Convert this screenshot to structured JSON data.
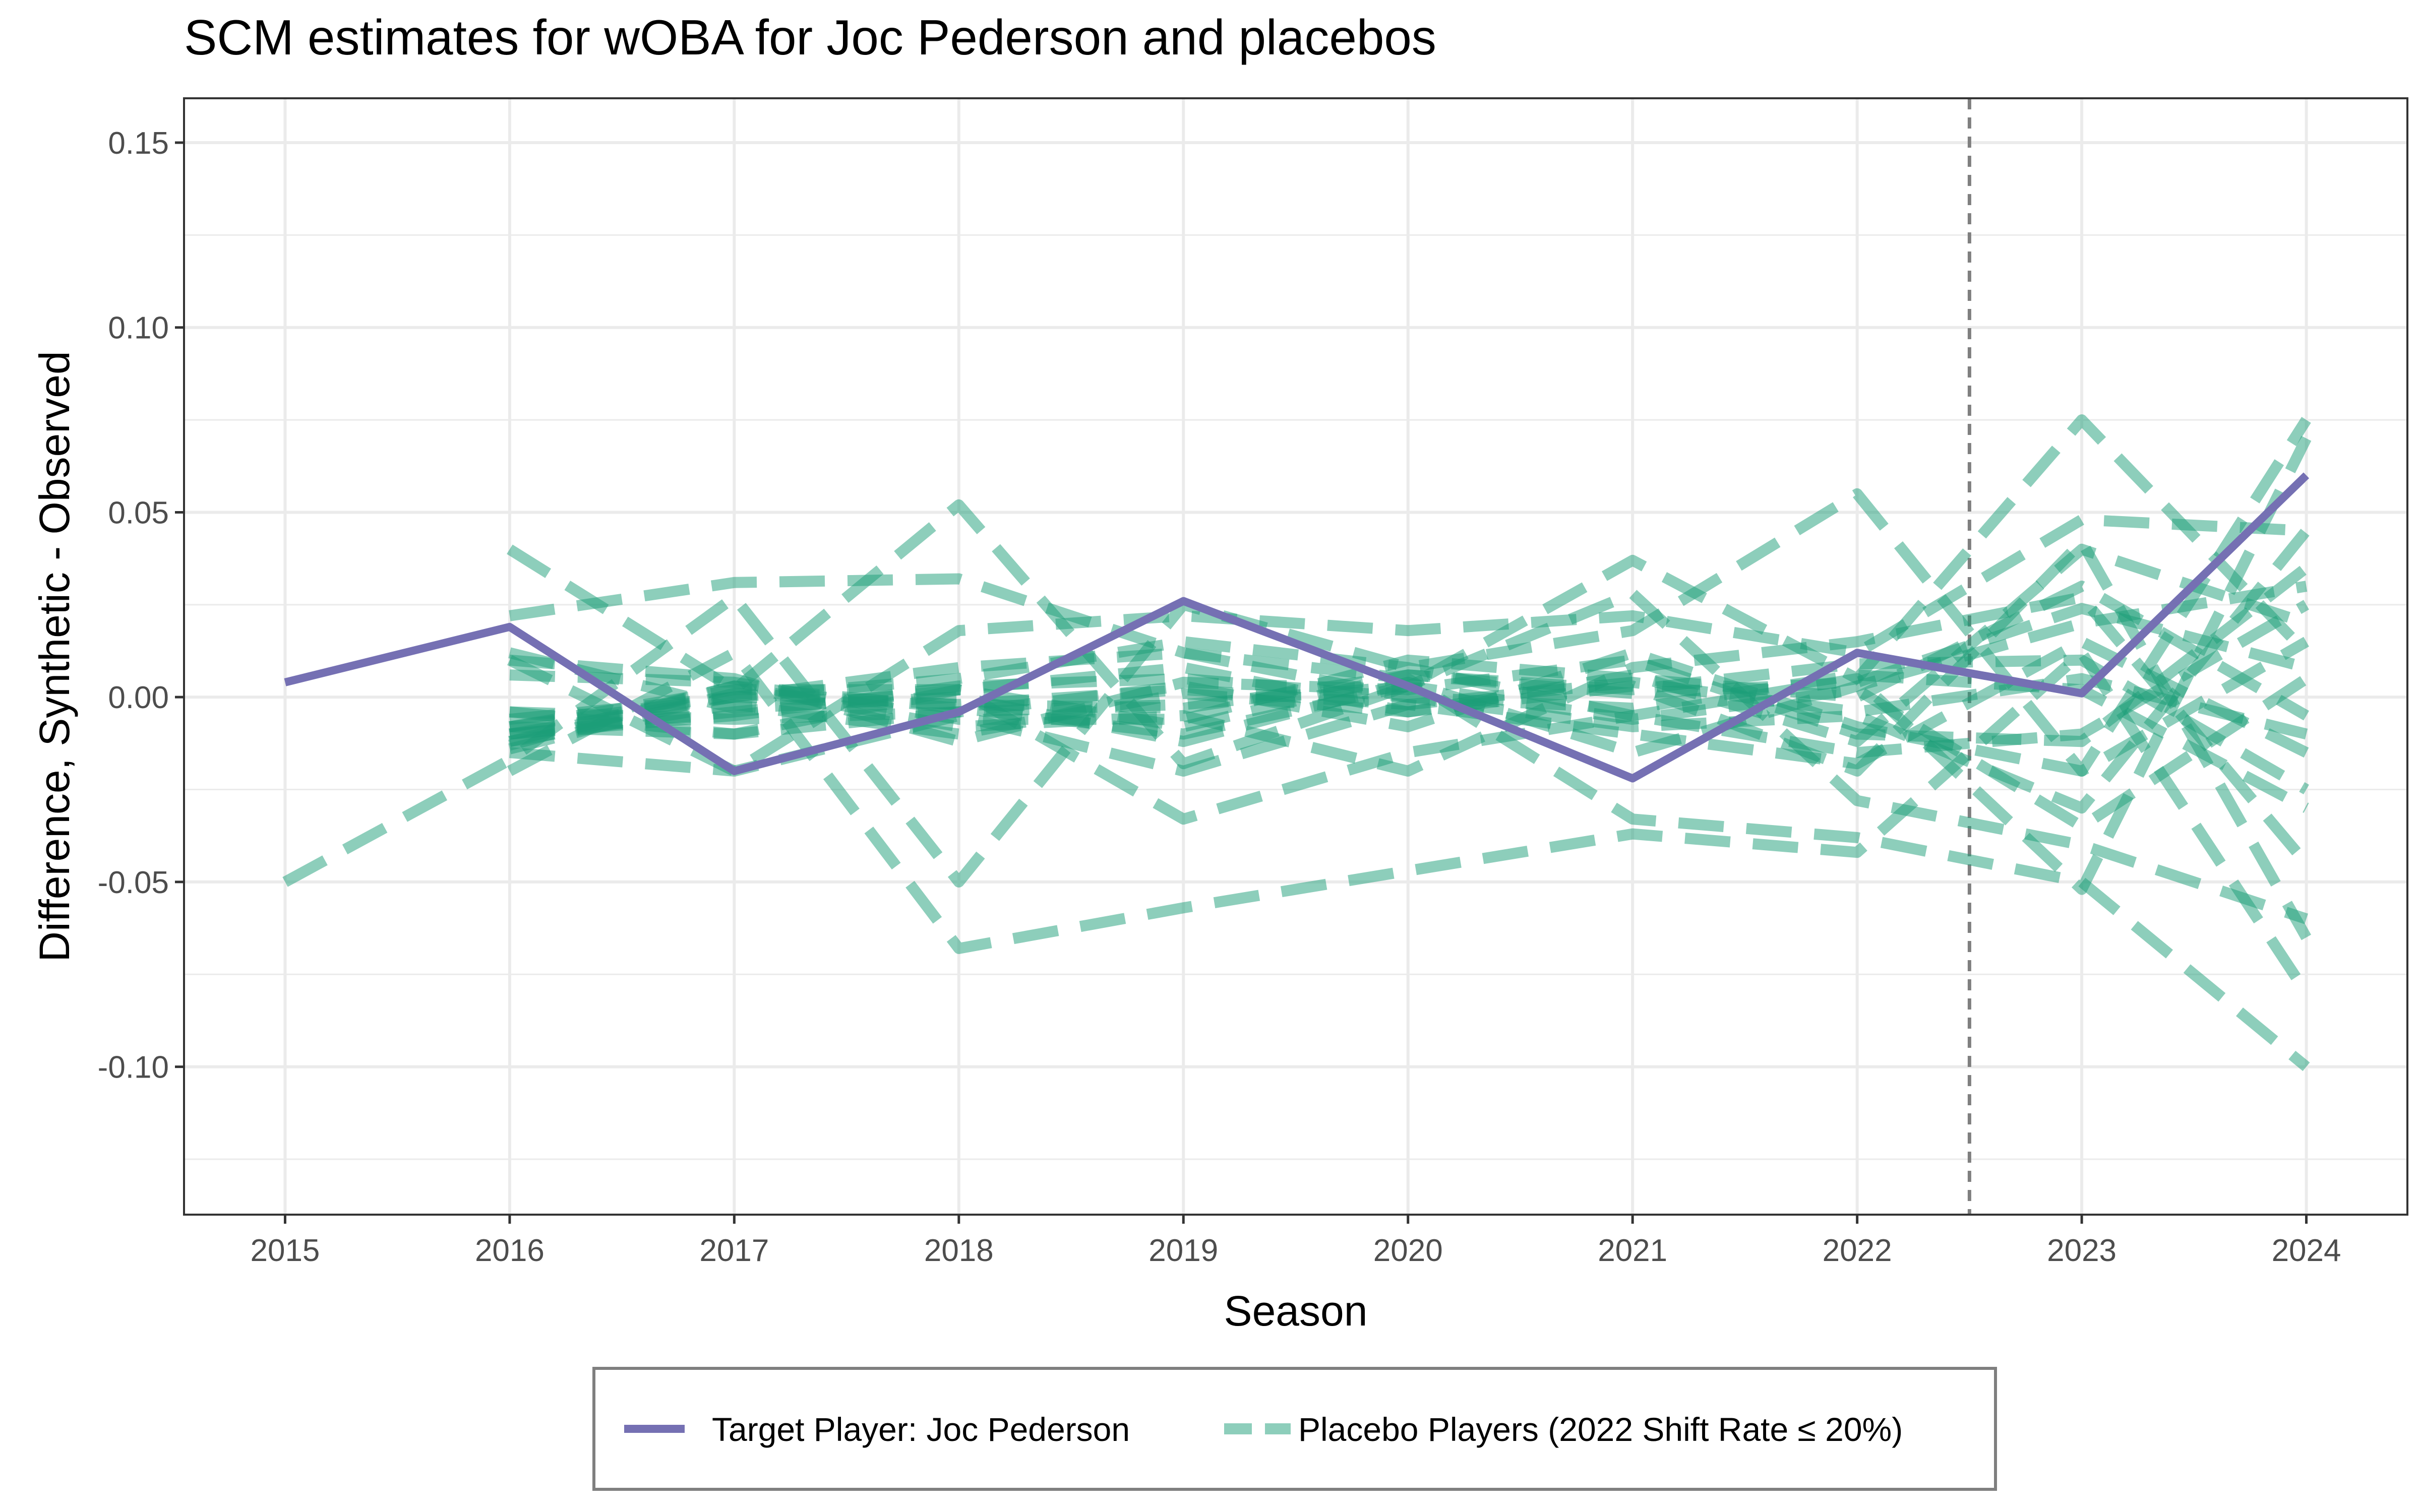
{
  "chart_data": {
    "type": "line",
    "title": "SCM estimates for wOBA for Joc Pederson and placebos",
    "xlabel": "Season",
    "ylabel": "Difference, Synthetic - Observed",
    "x": [
      2015,
      2016,
      2017,
      2018,
      2019,
      2020,
      2021,
      2022,
      2023,
      2024
    ],
    "x_ticks": [
      "2015",
      "2016",
      "2017",
      "2018",
      "2019",
      "2020",
      "2021",
      "2022",
      "2023",
      "2024"
    ],
    "y_ticks": [
      "0.15",
      "0.10",
      "0.05",
      "0.00",
      "-0.05",
      "-0.10"
    ],
    "xlim": [
      2014.55,
      2024.45
    ],
    "ylim": [
      -0.14,
      0.162
    ],
    "grid": true,
    "treatment_line_x": 2022.5,
    "legend_position": "bottom",
    "colors": {
      "target": "#7570b3",
      "placebo": "#1b9e77",
      "placebo_opacity": 0.5,
      "panel_border": "#333333",
      "grid": "#ebebeb",
      "treatment_line": "#7f7f7f"
    },
    "target": {
      "name": "Target Player: Joc Pederson",
      "values": [
        0.004,
        0.019,
        -0.02,
        -0.004,
        0.026,
        0.003,
        -0.022,
        0.012,
        0.001,
        0.06
      ]
    },
    "placebo_legend": "Placebo Players (2022 Shift Rate ≤ 20%)",
    "placebos": [
      {
        "values": [
          -0.05,
          -0.017,
          0.027,
          -0.05,
          0.025,
          0.008,
          0.018,
          0.055,
          -0.02,
          0.075
        ]
      },
      {
        "values": [
          null,
          0.04,
          0.002,
          0.052,
          -0.018,
          0.003,
          0.037,
          0.005,
          0.075,
          0.012
        ]
      },
      {
        "values": [
          null,
          0.022,
          0.031,
          0.032,
          0.012,
          0.005,
          -0.033,
          -0.038,
          -0.05,
          -0.1
        ]
      },
      {
        "values": [
          null,
          -0.02,
          0.012,
          -0.068,
          -0.057,
          -0.047,
          -0.037,
          -0.042,
          0.012,
          -0.08
        ]
      },
      {
        "values": [
          null,
          0.01,
          -0.02,
          0.018,
          0.022,
          0.018,
          0.022,
          0.012,
          0.048,
          0.045
        ]
      },
      {
        "values": [
          null,
          -0.008,
          -0.01,
          0.002,
          -0.033,
          -0.015,
          -0.005,
          0.005,
          -0.052,
          0.07
        ]
      },
      {
        "values": [
          null,
          -0.013,
          0.003,
          -0.003,
          -0.01,
          0.003,
          0.028,
          -0.028,
          -0.04,
          -0.06
        ]
      },
      {
        "values": [
          null,
          -0.008,
          0.002,
          0.002,
          0.008,
          -0.004,
          0.003,
          -0.02,
          0.042,
          -0.065
        ]
      },
      {
        "values": [
          null,
          -0.012,
          0.003,
          -0.008,
          -0.005,
          -0.02,
          0.008,
          0.015,
          0.027,
          -0.045
        ]
      },
      {
        "values": [
          null,
          -0.006,
          0.0,
          0.005,
          0.015,
          0.008,
          -0.005,
          -0.015,
          -0.01,
          0.025
        ]
      },
      {
        "values": [
          null,
          -0.01,
          -0.005,
          0.003,
          0.005,
          0.0,
          -0.008,
          -0.005,
          -0.03,
          0.045
        ]
      },
      {
        "values": [
          null,
          -0.014,
          0.001,
          -0.002,
          -0.003,
          0.006,
          0.002,
          0.009,
          0.01,
          -0.025
        ]
      },
      {
        "values": [
          null,
          0.012,
          -0.003,
          0.0,
          -0.012,
          0.004,
          -0.015,
          0.003,
          0.02,
          0.03
        ]
      },
      {
        "values": [
          null,
          -0.004,
          -0.006,
          -0.004,
          0.003,
          -0.008,
          0.012,
          -0.008,
          -0.02,
          0.015
        ]
      },
      {
        "values": [
          null,
          0.006,
          0.004,
          -0.006,
          -0.006,
          0.01,
          0.005,
          0.0,
          0.03,
          -0.005
        ]
      },
      {
        "values": [
          null,
          -0.01,
          0.0,
          0.008,
          0.012,
          0.0,
          -0.003,
          0.006,
          0.002,
          -0.03
        ]
      },
      {
        "values": [
          null,
          -0.012,
          -0.002,
          -0.01,
          0.001,
          -0.004,
          0.006,
          -0.012,
          0.04,
          0.02
        ]
      },
      {
        "values": [
          null,
          -0.004,
          -0.01,
          -0.004,
          -0.002,
          0.003,
          -0.006,
          0.002,
          -0.035,
          0.005
        ]
      },
      {
        "values": [
          null,
          -0.015,
          -0.02,
          -0.005,
          -0.02,
          -0.002,
          -0.01,
          -0.018,
          0.015,
          -0.015
        ]
      },
      {
        "values": [
          null,
          0.01,
          0.005,
          -0.012,
          0.004,
          0.002,
          0.01,
          -0.01,
          -0.012,
          0.035
        ]
      },
      {
        "values": [
          null,
          -0.01,
          -0.004,
          0.002,
          -0.008,
          0.006,
          0.001,
          0.004,
          0.024,
          0.008
        ]
      },
      {
        "values": [
          null,
          -0.008,
          0.0,
          -0.002,
          0.002,
          -0.002,
          0.004,
          -0.004,
          0.005,
          -0.01
        ]
      }
    ]
  }
}
